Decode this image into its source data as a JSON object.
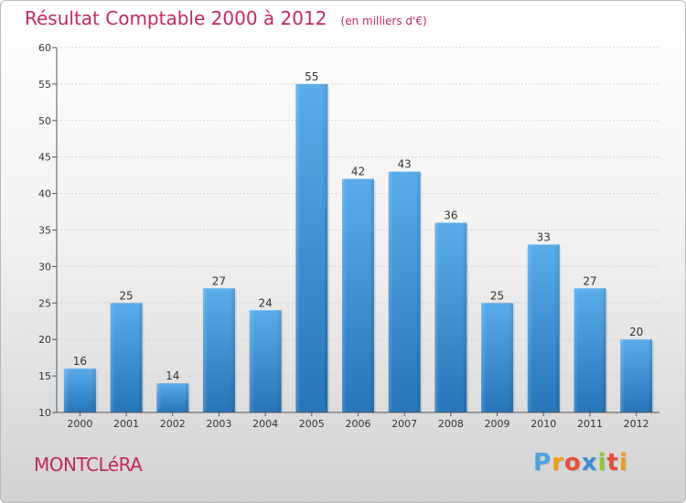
{
  "colors": {
    "accent": "#c02a5e",
    "bar": "#3b94d8",
    "bar_top": "#5aacea",
    "bar_bottom": "#2675b8"
  },
  "header": {
    "title": "Résultat Comptable 2000 à 2012",
    "unit": "(en milliers d'€)"
  },
  "footer": {
    "commune": "MONTCLéRA",
    "logo_letters": [
      "P",
      "r",
      "o",
      "x",
      "i",
      "t",
      "i"
    ],
    "logo_colors": [
      "#4aa3df",
      "#f39c12",
      "#e74c3c",
      "#3b8fd0",
      "#8cc63f",
      "#e74c3c",
      "#f39c12"
    ]
  },
  "chart_data": {
    "type": "bar",
    "title": "Résultat Comptable 2000 à 2012",
    "ylabel": "(en milliers d'€)",
    "xlabel": "",
    "categories": [
      "2000",
      "2001",
      "2002",
      "2003",
      "2004",
      "2005",
      "2006",
      "2007",
      "2008",
      "2009",
      "2010",
      "2011",
      "2012"
    ],
    "values": [
      16,
      25,
      14,
      27,
      24,
      55,
      42,
      43,
      36,
      25,
      33,
      27,
      20
    ],
    "ylim": [
      10,
      60
    ],
    "yticks": [
      10,
      15,
      20,
      25,
      30,
      35,
      40,
      45,
      50,
      55,
      60
    ],
    "grid": true
  }
}
